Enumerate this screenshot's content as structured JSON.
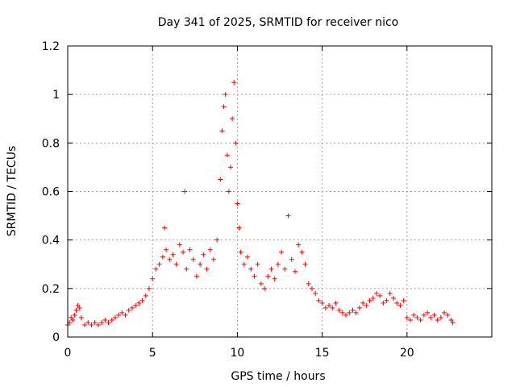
{
  "chart_data": {
    "type": "scatter",
    "title": "Day 341 of 2025, SRMTID for receiver nico",
    "xlabel": "GPS time / hours",
    "ylabel": "SRMTID / TECUs",
    "xlim": [
      0,
      25
    ],
    "ylim": [
      0,
      1.2
    ],
    "xticks": [
      0,
      5,
      10,
      15,
      20
    ],
    "yticks": [
      0,
      0.2,
      0.4,
      0.6,
      0.8,
      1,
      1.2
    ],
    "xtick_labels": [
      "0",
      "5",
      "10",
      "15",
      "20"
    ],
    "ytick_labels": [
      "0",
      "0.2",
      "0.4",
      "0.6",
      "0.8",
      "1",
      "1.2"
    ],
    "grid": true,
    "marker": "+",
    "color": "#ff0000",
    "series": [
      {
        "name": "SRMTID",
        "x": [
          0.0,
          0.1,
          0.2,
          0.3,
          0.4,
          0.5,
          0.6,
          0.7,
          0.8,
          1.0,
          1.2,
          1.4,
          1.6,
          1.8,
          2.0,
          2.2,
          2.4,
          2.6,
          2.8,
          3.0,
          3.2,
          3.4,
          3.6,
          3.8,
          4.0,
          4.2,
          4.4,
          4.6,
          4.8,
          5.0,
          5.2,
          5.4,
          5.6,
          5.7,
          5.8,
          6.0,
          6.2,
          6.4,
          6.6,
          6.8,
          6.9,
          7.0,
          7.2,
          7.4,
          7.6,
          7.8,
          8.0,
          8.2,
          8.4,
          8.6,
          8.8,
          9.0,
          9.1,
          9.2,
          9.3,
          9.4,
          9.5,
          9.6,
          9.7,
          9.8,
          9.9,
          10.0,
          10.1,
          10.2,
          10.4,
          10.6,
          10.8,
          11.0,
          11.2,
          11.4,
          11.6,
          11.8,
          12.0,
          12.2,
          12.4,
          12.6,
          12.8,
          13.0,
          13.2,
          13.4,
          13.6,
          13.8,
          14.0,
          14.2,
          14.4,
          14.6,
          14.8,
          15.0,
          15.2,
          15.4,
          15.6,
          15.8,
          16.0,
          16.2,
          16.4,
          16.6,
          16.8,
          17.0,
          17.2,
          17.4,
          17.6,
          17.8,
          18.0,
          18.2,
          18.4,
          18.6,
          18.8,
          19.0,
          19.2,
          19.4,
          19.6,
          19.8,
          20.0,
          20.2,
          20.4,
          20.6,
          20.8,
          21.0,
          21.2,
          21.4,
          21.6,
          21.8,
          22.0,
          22.2,
          22.4,
          22.6,
          22.7
        ],
        "y": [
          0.05,
          0.06,
          0.08,
          0.07,
          0.09,
          0.11,
          0.13,
          0.12,
          0.08,
          0.05,
          0.06,
          0.05,
          0.06,
          0.05,
          0.06,
          0.07,
          0.06,
          0.07,
          0.08,
          0.09,
          0.1,
          0.09,
          0.11,
          0.12,
          0.13,
          0.14,
          0.15,
          0.17,
          0.2,
          0.24,
          0.28,
          0.3,
          0.33,
          0.45,
          0.36,
          0.32,
          0.34,
          0.3,
          0.38,
          0.35,
          0.6,
          0.28,
          0.36,
          0.32,
          0.25,
          0.3,
          0.34,
          0.28,
          0.36,
          0.32,
          0.4,
          0.65,
          0.85,
          0.95,
          1.0,
          0.75,
          0.6,
          0.7,
          0.9,
          1.05,
          0.8,
          0.55,
          0.45,
          0.35,
          0.3,
          0.33,
          0.28,
          0.25,
          0.3,
          0.22,
          0.2,
          0.25,
          0.28,
          0.24,
          0.3,
          0.35,
          0.28,
          0.5,
          0.32,
          0.27,
          0.38,
          0.35,
          0.3,
          0.22,
          0.2,
          0.18,
          0.15,
          0.14,
          0.12,
          0.13,
          0.12,
          0.14,
          0.11,
          0.1,
          0.09,
          0.1,
          0.11,
          0.1,
          0.12,
          0.14,
          0.13,
          0.15,
          0.16,
          0.18,
          0.17,
          0.14,
          0.15,
          0.18,
          0.16,
          0.14,
          0.13,
          0.15,
          0.08,
          0.07,
          0.09,
          0.08,
          0.07,
          0.09,
          0.1,
          0.08,
          0.09,
          0.07,
          0.08,
          0.1,
          0.09,
          0.07,
          0.06
        ]
      }
    ]
  }
}
